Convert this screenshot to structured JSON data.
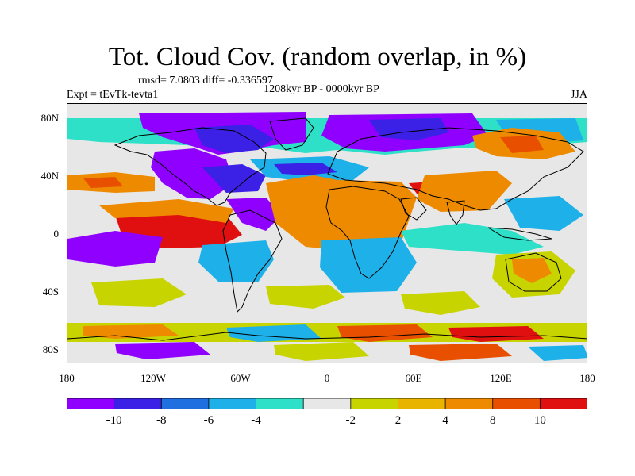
{
  "title": "Tot. Cloud Cov. (random overlap, in %)",
  "stats": "rmsd= 7.0803 diff= -0.336597",
  "experiment": "Expt = tEvTk-tevta1",
  "period": "1208kyr BP - 0000kyr BP",
  "season": "JJA",
  "map": {
    "projection": "cylindrical-equidistant",
    "lon_range": [
      -180,
      180
    ],
    "lat_range": [
      -90,
      90
    ],
    "lat_ticks": [
      {
        "value": 80,
        "label": "80N"
      },
      {
        "value": 40,
        "label": "40N"
      },
      {
        "value": 0,
        "label": "0"
      },
      {
        "value": -40,
        "label": "40S"
      },
      {
        "value": -80,
        "label": "80S"
      }
    ],
    "lon_ticks": [
      {
        "value": -180,
        "label": "180"
      },
      {
        "value": -120,
        "label": "120W"
      },
      {
        "value": -60,
        "label": "60W"
      },
      {
        "value": 0,
        "label": "0"
      },
      {
        "value": 60,
        "label": "60E"
      },
      {
        "value": 120,
        "label": "120E"
      },
      {
        "value": 180,
        "label": "180"
      }
    ],
    "background_color": "#e7e7e7",
    "coastline_color": "#000000"
  },
  "colorbar": {
    "colors": [
      "#8f00ff",
      "#3b20e6",
      "#1f6fe0",
      "#1eb0e8",
      "#2ee0c8",
      "#e7e7e7",
      "#c8d400",
      "#e8b400",
      "#ee8a00",
      "#e85000",
      "#e01010"
    ],
    "labels": [
      "-10",
      "-8",
      "-6",
      "-4",
      "-2",
      "2",
      "4",
      "8",
      "10"
    ]
  }
}
